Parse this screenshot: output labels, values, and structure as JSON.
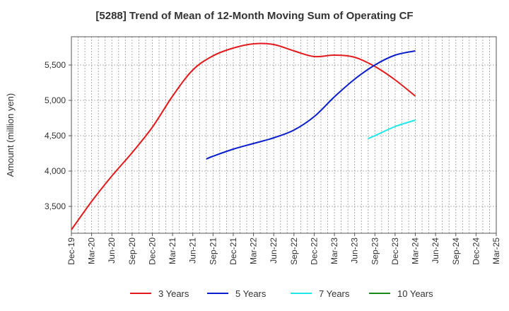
{
  "chart_data": {
    "type": "line",
    "title": "[5288]  Trend of Mean of 12-Month Moving Sum of Operating CF",
    "ylabel": "Amount (million yen)",
    "xlabel": "",
    "ylim": [
      3120,
      5900
    ],
    "yticks": [
      3500,
      4000,
      4500,
      5000,
      5500
    ],
    "ytick_labels": [
      "3,500",
      "4,000",
      "4,500",
      "5,000",
      "5,500"
    ],
    "x_start": "Dec-19",
    "x_months": 63,
    "xtick_labels": [
      "Dec-19",
      "Mar-20",
      "Jun-20",
      "Sep-20",
      "Dec-20",
      "Mar-21",
      "Jun-21",
      "Sep-21",
      "Dec-21",
      "Mar-22",
      "Jun-22",
      "Sep-22",
      "Dec-22",
      "Mar-23",
      "Jun-23",
      "Sep-23",
      "Dec-23",
      "Mar-24",
      "Jun-24",
      "Sep-24",
      "Dec-24",
      "Mar-25"
    ],
    "grid": true,
    "legend_position": "bottom",
    "series": [
      {
        "name": "3 Years",
        "color": "#e31a1c",
        "x": [
          "Dec-19",
          "Mar-20",
          "Jun-20",
          "Sep-20",
          "Dec-20",
          "Mar-21",
          "Jun-21",
          "Sep-21",
          "Dec-21",
          "Mar-22",
          "Jun-22",
          "Sep-22",
          "Dec-22",
          "Mar-23",
          "Jun-23",
          "Sep-23",
          "Dec-23",
          "Mar-24"
        ],
        "values": [
          3170,
          3570,
          3930,
          4260,
          4620,
          5060,
          5430,
          5630,
          5740,
          5800,
          5790,
          5700,
          5620,
          5640,
          5610,
          5480,
          5290,
          5060
        ]
      },
      {
        "name": "5 Years",
        "color": "#0a1ecc",
        "x": [
          "Aug-21",
          "Sep-21",
          "Dec-21",
          "Mar-22",
          "Jun-22",
          "Sep-22",
          "Dec-22",
          "Mar-23",
          "Jun-23",
          "Sep-23",
          "Dec-23",
          "Mar-24"
        ],
        "values": [
          4170,
          4210,
          4310,
          4390,
          4470,
          4580,
          4770,
          5050,
          5300,
          5500,
          5640,
          5700
        ]
      },
      {
        "name": "7 Years",
        "color": "#1ee8e8",
        "x": [
          "Aug-23",
          "Sep-23",
          "Dec-23",
          "Mar-24"
        ],
        "values": [
          4460,
          4500,
          4630,
          4720
        ]
      },
      {
        "name": "10 Years",
        "color": "#1a8a1a",
        "x": [],
        "values": []
      }
    ]
  }
}
